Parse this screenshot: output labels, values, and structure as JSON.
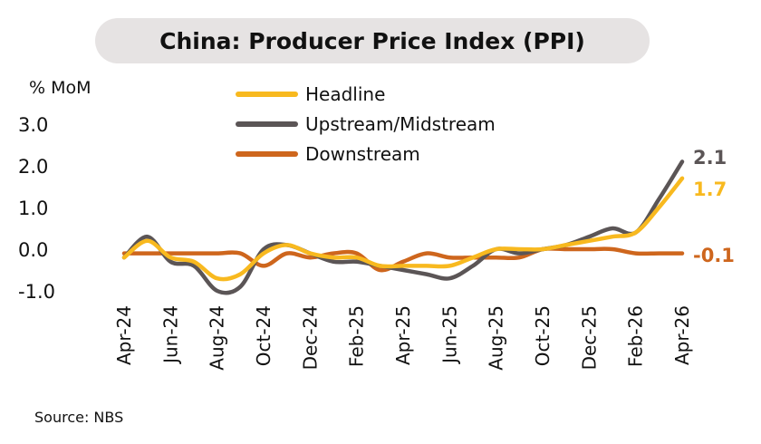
{
  "chart_data": {
    "type": "line",
    "title": "China: Producer Price Index (PPI)",
    "ylabel": "% MoM",
    "ylim": [
      -1.0,
      3.0
    ],
    "yticks": [
      "3.0",
      "2.0",
      "1.0",
      "0.0",
      "-1.0"
    ],
    "x": [
      "Apr-24",
      "May-24",
      "Jun-24",
      "Jul-24",
      "Aug-24",
      "Sep-24",
      "Oct-24",
      "Nov-24",
      "Dec-24",
      "Jan-25",
      "Feb-25",
      "Mar-25",
      "Apr-25",
      "May-25",
      "Jun-25",
      "Jul-25",
      "Aug-25",
      "Sep-25",
      "Oct-25",
      "Nov-25",
      "Dec-25",
      "Jan-26",
      "Feb-26",
      "Mar-26",
      "Apr-26"
    ],
    "xtick_labels": [
      "Apr-24",
      "Jun-24",
      "Aug-24",
      "Oct-24",
      "Dec-24",
      "Feb-25",
      "Apr-25",
      "Jun-25",
      "Aug-25",
      "Oct-25",
      "Dec-25",
      "Feb-26",
      "Apr-26"
    ],
    "grid": false,
    "legend_position": "top",
    "series": [
      {
        "name": "Headline",
        "color": "#f8b91f",
        "values": [
          -0.2,
          0.2,
          -0.2,
          -0.3,
          -0.7,
          -0.6,
          -0.1,
          0.1,
          -0.1,
          -0.2,
          -0.2,
          -0.4,
          -0.4,
          -0.4,
          -0.4,
          -0.2,
          0.0,
          0.0,
          0.0,
          0.1,
          0.2,
          0.3,
          0.4,
          1.0,
          1.7
        ],
        "end_label": "1.7"
      },
      {
        "name": "Upstream/Midstream",
        "color": "#5b5556",
        "values": [
          -0.2,
          0.3,
          -0.3,
          -0.4,
          -1.0,
          -0.9,
          0.0,
          0.1,
          -0.1,
          -0.3,
          -0.3,
          -0.4,
          -0.5,
          -0.6,
          -0.7,
          -0.4,
          0.0,
          -0.1,
          0.0,
          0.1,
          0.3,
          0.5,
          0.4,
          1.2,
          2.1
        ],
        "end_label": "2.1"
      },
      {
        "name": "Downstream",
        "color": "#ce661d",
        "values": [
          -0.1,
          -0.1,
          -0.1,
          -0.1,
          -0.1,
          -0.1,
          -0.4,
          -0.1,
          -0.2,
          -0.1,
          -0.1,
          -0.5,
          -0.3,
          -0.1,
          -0.2,
          -0.2,
          -0.2,
          -0.2,
          0.0,
          0.0,
          0.0,
          0.0,
          -0.1,
          -0.1,
          -0.1
        ],
        "end_label": "-0.1"
      }
    ]
  },
  "source": "Source: NBS"
}
